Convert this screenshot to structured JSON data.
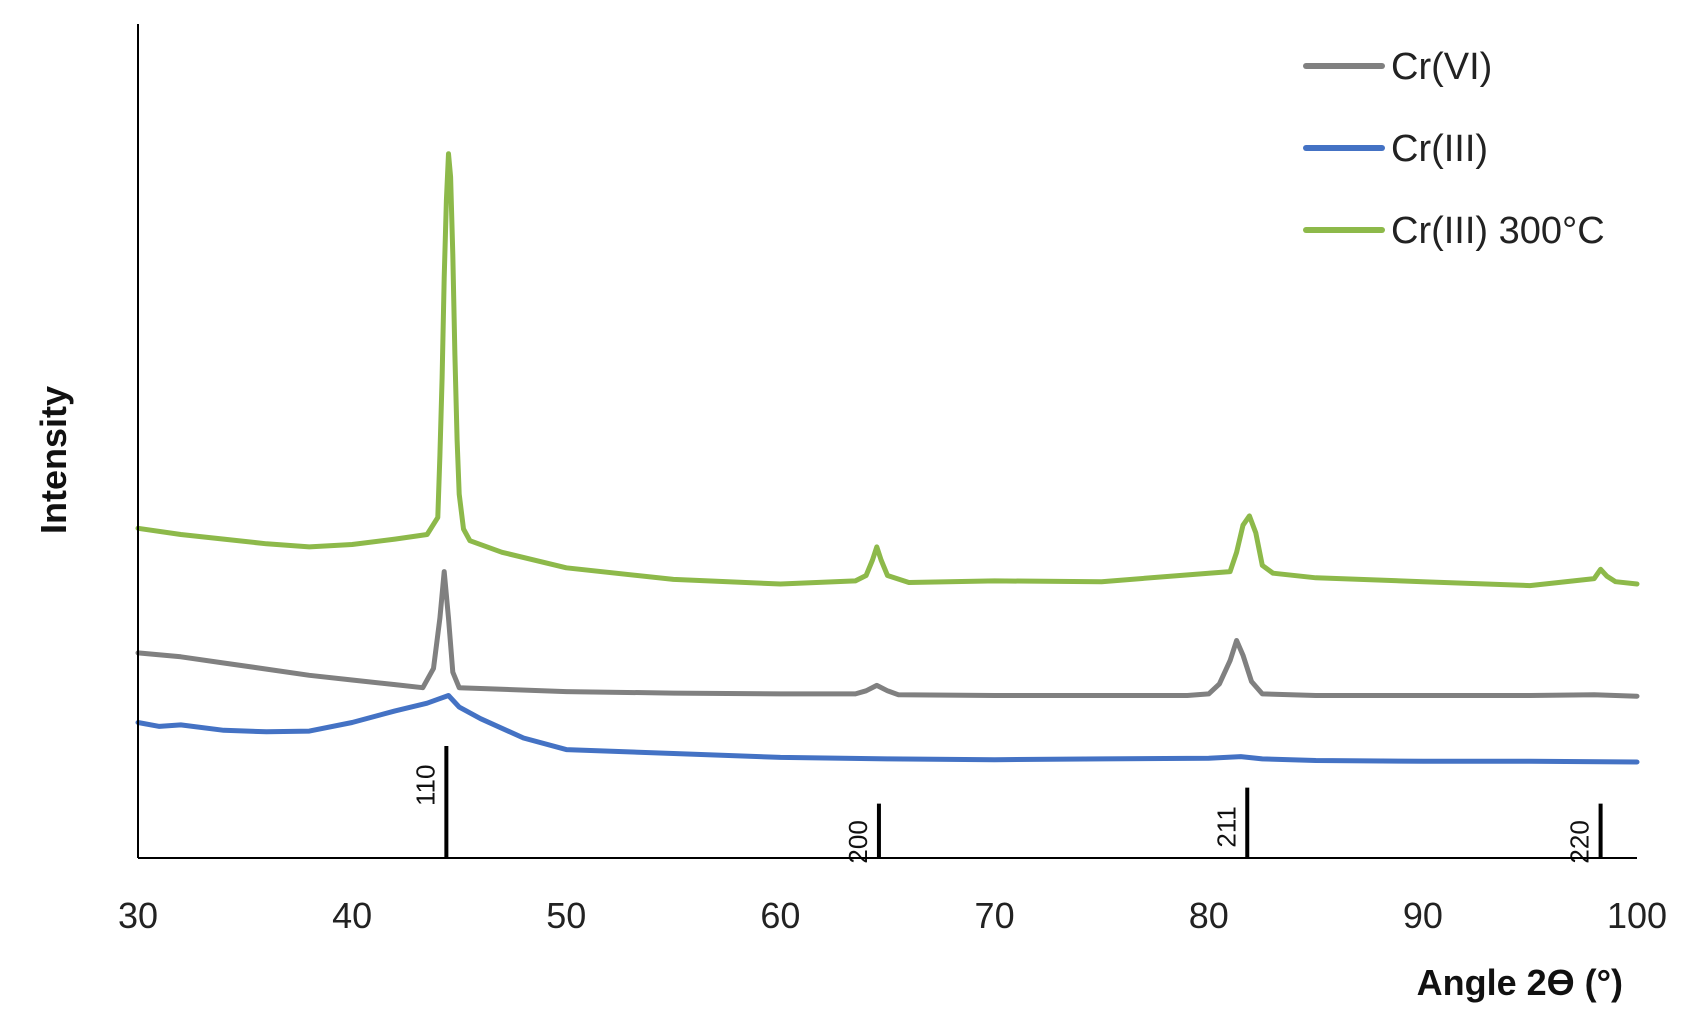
{
  "chart_data": {
    "type": "line",
    "title": "",
    "xlabel": "Angle 2ϴ (°)",
    "ylabel": "Intensity",
    "xlim": [
      30,
      100
    ],
    "ylim": [
      0,
      100
    ],
    "x_ticks": [
      "30",
      "40",
      "50",
      "60",
      "70",
      "80",
      "90",
      "100"
    ],
    "y_ticks_shown": false,
    "grid": false,
    "legend_position": "top-right",
    "series": [
      {
        "name": "Cr(VI)",
        "color": "#808080",
        "points": [
          [
            30,
            26.5
          ],
          [
            32,
            26.0
          ],
          [
            34,
            25.2
          ],
          [
            36,
            24.4
          ],
          [
            38,
            23.6
          ],
          [
            40,
            23.0
          ],
          [
            42,
            22.4
          ],
          [
            43.3,
            22.0
          ],
          [
            43.8,
            24.5
          ],
          [
            44.1,
            31.0
          ],
          [
            44.3,
            37.0
          ],
          [
            44.5,
            31.0
          ],
          [
            44.7,
            24.0
          ],
          [
            45,
            22.0
          ],
          [
            47,
            21.8
          ],
          [
            50,
            21.5
          ],
          [
            55,
            21.3
          ],
          [
            60,
            21.2
          ],
          [
            63.5,
            21.2
          ],
          [
            64,
            21.6
          ],
          [
            64.5,
            22.3
          ],
          [
            65,
            21.6
          ],
          [
            65.5,
            21.1
          ],
          [
            70,
            21.0
          ],
          [
            75,
            21.0
          ],
          [
            79,
            21.0
          ],
          [
            80,
            21.2
          ],
          [
            80.5,
            22.5
          ],
          [
            81,
            25.5
          ],
          [
            81.3,
            28.1
          ],
          [
            81.6,
            26.2
          ],
          [
            82,
            22.8
          ],
          [
            82.5,
            21.2
          ],
          [
            85,
            21.0
          ],
          [
            90,
            21.0
          ],
          [
            95,
            21.0
          ],
          [
            98,
            21.1
          ],
          [
            100,
            20.9
          ]
        ]
      },
      {
        "name": "Cr(III)",
        "color": "#4472C4",
        "points": [
          [
            30,
            17.5
          ],
          [
            31,
            17.0
          ],
          [
            32,
            17.2
          ],
          [
            34,
            16.5
          ],
          [
            36,
            16.3
          ],
          [
            38,
            16.4
          ],
          [
            40,
            17.5
          ],
          [
            42,
            19.0
          ],
          [
            43.5,
            20.0
          ],
          [
            44,
            20.5
          ],
          [
            44.5,
            21.0
          ],
          [
            45,
            19.5
          ],
          [
            46,
            18.0
          ],
          [
            48,
            15.5
          ],
          [
            50,
            14.0
          ],
          [
            55,
            13.5
          ],
          [
            60,
            13.0
          ],
          [
            65,
            12.8
          ],
          [
            70,
            12.7
          ],
          [
            75,
            12.8
          ],
          [
            80,
            12.9
          ],
          [
            81.5,
            13.1
          ],
          [
            82.5,
            12.8
          ],
          [
            85,
            12.6
          ],
          [
            90,
            12.5
          ],
          [
            95,
            12.5
          ],
          [
            100,
            12.4
          ]
        ]
      },
      {
        "name": "Cr(III) 300°C",
        "color": "#8DB94A",
        "points": [
          [
            30,
            42.6
          ],
          [
            32,
            41.8
          ],
          [
            34,
            41.2
          ],
          [
            36,
            40.6
          ],
          [
            38,
            40.2
          ],
          [
            40,
            40.5
          ],
          [
            42,
            41.2
          ],
          [
            43.5,
            41.8
          ],
          [
            44,
            44.0
          ],
          [
            44.1,
            52.0
          ],
          [
            44.2,
            62.0
          ],
          [
            44.3,
            75.0
          ],
          [
            44.4,
            85.0
          ],
          [
            44.5,
            91.0
          ],
          [
            44.6,
            88.0
          ],
          [
            44.7,
            78.0
          ],
          [
            44.8,
            65.0
          ],
          [
            44.9,
            54.0
          ],
          [
            45,
            47.0
          ],
          [
            45.2,
            42.5
          ],
          [
            45.5,
            41.0
          ],
          [
            47,
            39.5
          ],
          [
            50,
            37.5
          ],
          [
            55,
            36.0
          ],
          [
            60,
            35.4
          ],
          [
            63.5,
            35.8
          ],
          [
            64,
            36.5
          ],
          [
            64.3,
            38.5
          ],
          [
            64.5,
            40.2
          ],
          [
            64.7,
            38.5
          ],
          [
            65,
            36.5
          ],
          [
            66,
            35.6
          ],
          [
            70,
            35.8
          ],
          [
            75,
            35.7
          ],
          [
            80,
            36.8
          ],
          [
            81,
            37.0
          ],
          [
            81.3,
            39.5
          ],
          [
            81.6,
            43.0
          ],
          [
            81.9,
            44.2
          ],
          [
            82.2,
            42.0
          ],
          [
            82.5,
            37.8
          ],
          [
            83,
            36.8
          ],
          [
            85,
            36.2
          ],
          [
            90,
            35.7
          ],
          [
            95,
            35.2
          ],
          [
            98,
            36.1
          ],
          [
            98.3,
            37.3
          ],
          [
            98.6,
            36.4
          ],
          [
            99,
            35.7
          ],
          [
            100,
            35.4
          ]
        ]
      }
    ],
    "reference_lines": [
      {
        "label": "110",
        "x": 44.4,
        "height": 100
      },
      {
        "label": "200",
        "x": 64.6,
        "height": 28
      },
      {
        "label": "211",
        "x": 81.8,
        "height": 48
      },
      {
        "label": "220",
        "x": 98.3,
        "height": 28
      }
    ]
  }
}
